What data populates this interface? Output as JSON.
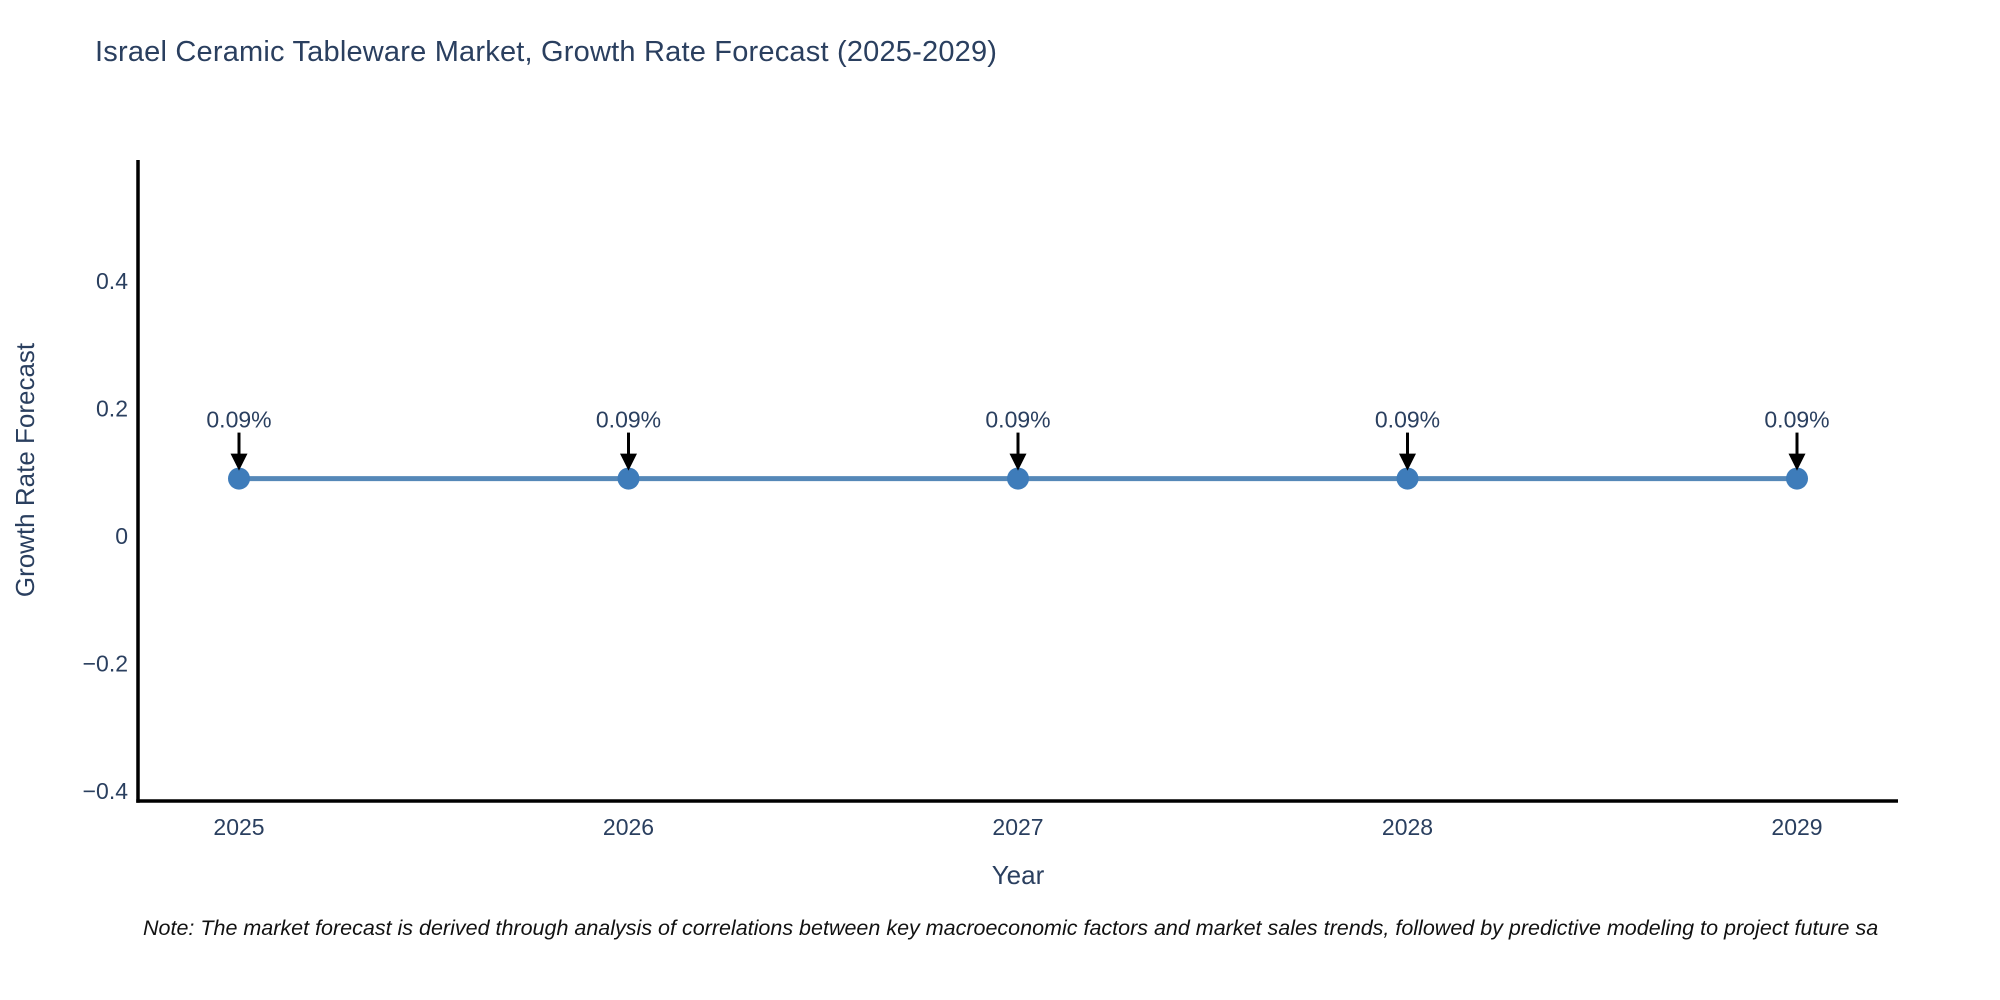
{
  "note": "Note: The market forecast is derived through analysis of correlations between key macroeconomic factors and market sales trends, followed by predictive modeling to project future sa",
  "chart_data": {
    "type": "line",
    "title": "Israel Ceramic Tableware Market, Growth Rate Forecast (2025-2029)",
    "xlabel": "Year",
    "ylabel": "Growth Rate Forecast",
    "categories": [
      "2025",
      "2026",
      "2027",
      "2028",
      "2029"
    ],
    "values": [
      0.09,
      0.09,
      0.09,
      0.09,
      0.09
    ],
    "point_labels": [
      "0.09%",
      "0.09%",
      "0.09%",
      "0.09%",
      "0.09%"
    ],
    "y_ticks": [
      {
        "value": 0.4,
        "label": "0.4"
      },
      {
        "value": 0.2,
        "label": "0.2"
      },
      {
        "value": 0,
        "label": "0"
      },
      {
        "value": -0.2,
        "label": "−0.2"
      },
      {
        "value": -0.4,
        "label": "−0.4"
      }
    ],
    "ylim": [
      -0.416,
      0.59
    ],
    "grid": false,
    "legend": "none",
    "colors": {
      "line": "#5588b8",
      "marker": "#3e7cba",
      "axis": "#000000",
      "text": "#2a3f5f",
      "annotation_arrow": "#000000"
    }
  }
}
